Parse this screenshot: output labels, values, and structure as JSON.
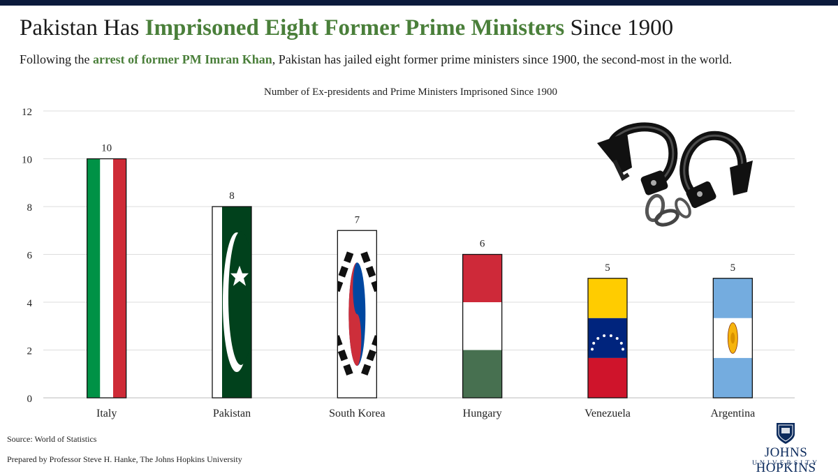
{
  "header": {
    "title_part1": "Pakistan Has ",
    "title_highlight": "Imprisoned Eight Former Prime Ministers",
    "title_part2": " Since 1900",
    "subtitle_part1": "Following the ",
    "subtitle_highlight": "arrest of former PM Imran Khan",
    "subtitle_part2": ", Pakistan has jailed eight former prime ministers since 1900, the second-most in the world."
  },
  "chart_data": {
    "type": "bar",
    "title": "Number of Ex-presidents and Prime Ministers Imprisoned Since 1900",
    "xlabel": "",
    "ylabel": "",
    "categories": [
      "Italy",
      "Pakistan",
      "South Korea",
      "Hungary",
      "Venezuela",
      "Argentina"
    ],
    "values": [
      10,
      8,
      7,
      6,
      5,
      5
    ],
    "data_labels": [
      "10",
      "8",
      "7",
      "6",
      "5",
      "5"
    ],
    "ylim": [
      0,
      12
    ],
    "yticks": [
      0,
      2,
      4,
      6,
      8,
      10,
      12
    ],
    "grid": true,
    "bar_fills": [
      "flag-italy",
      "flag-pakistan",
      "flag-south-korea",
      "flag-hungary",
      "flag-venezuela",
      "flag-argentina"
    ],
    "decoration": "handcuffs-icon"
  },
  "colors": {
    "highlight_green": "#4a7f3a",
    "grid": "#dddddd",
    "navy": "#0b1a3c"
  },
  "footer": {
    "source": "Source:  World of Statistics",
    "prepared_by": "Prepared by Professor Steve H. Hanke, The Johns Hopkins University"
  },
  "logo": {
    "line1": "JOHNS HOPKINS",
    "line2": "UNIVERSITY"
  }
}
